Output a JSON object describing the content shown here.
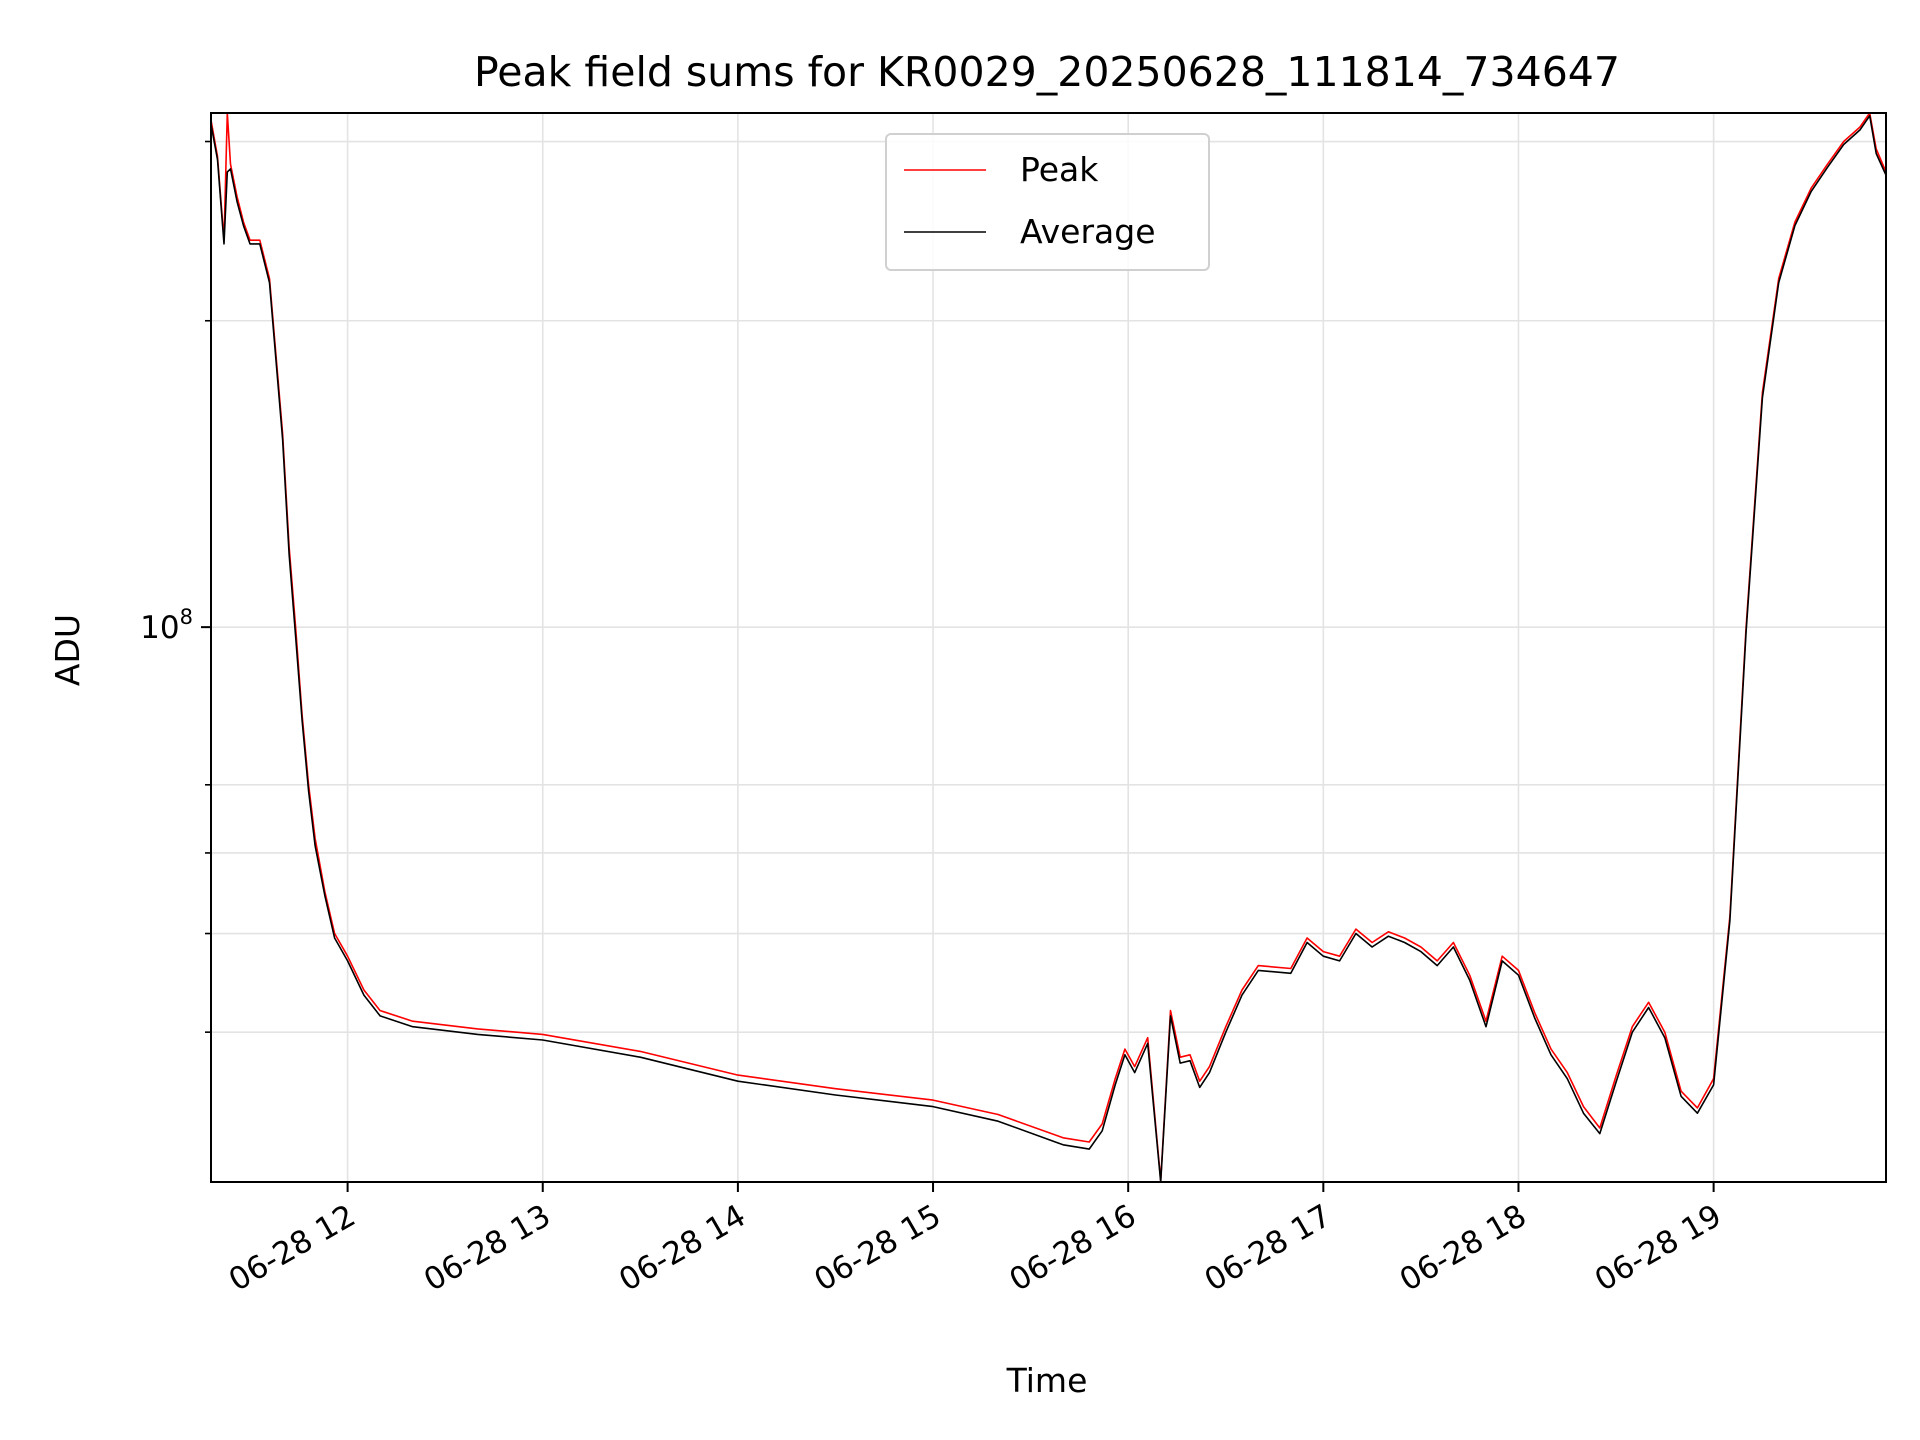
{
  "chart_data": {
    "type": "line",
    "title": "Peak field sums for KR0029_20250628_111814_734647",
    "xlabel": "Time",
    "ylabel": "ADU",
    "yscale": "log",
    "grid": true,
    "legend_placement": "upper center",
    "xlim": [
      "06-28 11:18",
      "06-28 19:53"
    ],
    "ylim": [
      28500000,
      320000000
    ],
    "x_ticks": [
      "06-28 12",
      "06-28 13",
      "06-28 14",
      "06-28 15",
      "06-28 16",
      "06-28 17",
      "06-28 18",
      "06-28 19"
    ],
    "y_major_ticks": [
      {
        "value": 100000000,
        "label_base": "10",
        "label_exp": "8"
      }
    ],
    "y_minor_ticks": [
      40000000,
      50000000,
      60000000,
      70000000,
      200000000,
      300000000
    ],
    "series": [
      {
        "name": "Peak",
        "color": "#ff0000",
        "x": [
          "06-28 11:18",
          "06-28 11:20",
          "06-28 11:22",
          "06-28 11:23",
          "06-28 11:24",
          "06-28 11:26",
          "06-28 11:28",
          "06-28 11:30",
          "06-28 11:33",
          "06-28 11:36",
          "06-28 11:40",
          "06-28 11:42",
          "06-28 11:44",
          "06-28 11:46",
          "06-28 11:48",
          "06-28 11:50",
          "06-28 11:53",
          "06-28 11:56",
          "06-28 12:00",
          "06-28 12:05",
          "06-28 12:10",
          "06-28 12:20",
          "06-28 12:40",
          "06-28 13:00",
          "06-28 13:30",
          "06-28 14:00",
          "06-28 14:30",
          "06-28 15:00",
          "06-28 15:20",
          "06-28 15:40",
          "06-28 15:48",
          "06-28 15:52",
          "06-28 15:56",
          "06-28 15:59",
          "06-28 16:02",
          "06-28 16:06",
          "06-28 16:10",
          "06-28 16:13",
          "06-28 16:16",
          "06-28 16:19",
          "06-28 16:22",
          "06-28 16:25",
          "06-28 16:30",
          "06-28 16:35",
          "06-28 16:40",
          "06-28 16:50",
          "06-28 16:55",
          "06-28 17:00",
          "06-28 17:05",
          "06-28 17:10",
          "06-28 17:15",
          "06-28 17:20",
          "06-28 17:25",
          "06-28 17:30",
          "06-28 17:35",
          "06-28 17:40",
          "06-28 17:45",
          "06-28 17:50",
          "06-28 17:55",
          "06-28 18:00",
          "06-28 18:05",
          "06-28 18:10",
          "06-28 18:15",
          "06-28 18:20",
          "06-28 18:25",
          "06-28 18:30",
          "06-28 18:35",
          "06-28 18:40",
          "06-28 18:45",
          "06-28 18:50",
          "06-28 18:55",
          "06-28 19:00",
          "06-28 19:05",
          "06-28 19:10",
          "06-28 19:15",
          "06-28 19:20",
          "06-28 19:25",
          "06-28 19:30",
          "06-28 19:35",
          "06-28 19:40",
          "06-28 19:45",
          "06-28 19:48",
          "06-28 19:50",
          "06-28 19:53"
        ],
        "y": [
          315000000,
          290000000,
          240000000,
          330000000,
          285000000,
          265000000,
          250000000,
          240000000,
          240000000,
          220000000,
          155000000,
          120000000,
          100000000,
          82000000,
          70000000,
          62000000,
          55000000,
          50000000,
          47500000,
          44000000,
          42000000,
          41000000,
          40300000,
          39800000,
          38300000,
          36300000,
          35200000,
          34300000,
          33200000,
          31500000,
          31200000,
          32500000,
          36000000,
          38500000,
          37000000,
          39500000,
          28600000,
          42000000,
          37800000,
          38000000,
          35800000,
          37000000,
          40500000,
          44000000,
          46500000,
          46200000,
          49500000,
          48000000,
          47500000,
          50500000,
          49000000,
          50200000,
          49500000,
          48500000,
          47000000,
          49000000,
          45500000,
          41000000,
          47500000,
          46000000,
          41800000,
          38500000,
          36500000,
          33800000,
          32200000,
          36200000,
          40500000,
          42800000,
          40000000,
          35000000,
          33700000,
          36000000,
          52000000,
          100000000,
          170000000,
          220000000,
          250000000,
          270000000,
          285000000,
          300000000,
          310000000,
          320000000,
          295000000,
          280000000
        ]
      },
      {
        "name": "Average",
        "color": "#000000",
        "x": [
          "06-28 11:18",
          "06-28 11:20",
          "06-28 11:22",
          "06-28 11:23",
          "06-28 11:24",
          "06-28 11:26",
          "06-28 11:28",
          "06-28 11:30",
          "06-28 11:33",
          "06-28 11:36",
          "06-28 11:40",
          "06-28 11:42",
          "06-28 11:44",
          "06-28 11:46",
          "06-28 11:48",
          "06-28 11:50",
          "06-28 11:53",
          "06-28 11:56",
          "06-28 12:00",
          "06-28 12:05",
          "06-28 12:10",
          "06-28 12:20",
          "06-28 12:40",
          "06-28 13:00",
          "06-28 13:30",
          "06-28 14:00",
          "06-28 14:30",
          "06-28 15:00",
          "06-28 15:20",
          "06-28 15:40",
          "06-28 15:48",
          "06-28 15:52",
          "06-28 15:56",
          "06-28 15:59",
          "06-28 16:02",
          "06-28 16:06",
          "06-28 16:10",
          "06-28 16:13",
          "06-28 16:16",
          "06-28 16:19",
          "06-28 16:22",
          "06-28 16:25",
          "06-28 16:30",
          "06-28 16:35",
          "06-28 16:40",
          "06-28 16:50",
          "06-28 16:55",
          "06-28 17:00",
          "06-28 17:05",
          "06-28 17:10",
          "06-28 17:15",
          "06-28 17:20",
          "06-28 17:25",
          "06-28 17:30",
          "06-28 17:35",
          "06-28 17:40",
          "06-28 17:45",
          "06-28 17:50",
          "06-28 17:55",
          "06-28 18:00",
          "06-28 18:05",
          "06-28 18:10",
          "06-28 18:15",
          "06-28 18:20",
          "06-28 18:25",
          "06-28 18:30",
          "06-28 18:35",
          "06-28 18:40",
          "06-28 18:45",
          "06-28 18:50",
          "06-28 18:55",
          "06-28 19:00",
          "06-28 19:05",
          "06-28 19:10",
          "06-28 19:15",
          "06-28 19:20",
          "06-28 19:25",
          "06-28 19:30",
          "06-28 19:35",
          "06-28 19:40",
          "06-28 19:45",
          "06-28 19:48",
          "06-28 19:50",
          "06-28 19:53"
        ],
        "y": [
          312000000,
          288000000,
          238000000,
          280000000,
          282000000,
          262000000,
          248000000,
          238000000,
          238000000,
          218000000,
          153000000,
          118000000,
          98000000,
          81000000,
          69000000,
          61000000,
          54500000,
          49500000,
          47000000,
          43500000,
          41500000,
          40500000,
          39800000,
          39300000,
          37800000,
          35800000,
          34700000,
          33800000,
          32700000,
          31000000,
          30700000,
          32000000,
          35500000,
          38000000,
          36500000,
          39000000,
          28500000,
          41500000,
          37300000,
          37500000,
          35300000,
          36500000,
          40000000,
          43500000,
          46000000,
          45700000,
          49000000,
          47500000,
          47000000,
          50000000,
          48500000,
          49700000,
          49000000,
          48000000,
          46500000,
          48500000,
          45000000,
          40500000,
          47000000,
          45500000,
          41300000,
          38000000,
          36000000,
          33300000,
          31800000,
          35700000,
          40000000,
          42300000,
          39500000,
          34600000,
          33300000,
          35500000,
          51500000,
          99000000,
          168000000,
          218000000,
          248000000,
          268000000,
          283000000,
          298000000,
          308000000,
          318000000,
          292000000,
          278000000
        ]
      }
    ]
  }
}
